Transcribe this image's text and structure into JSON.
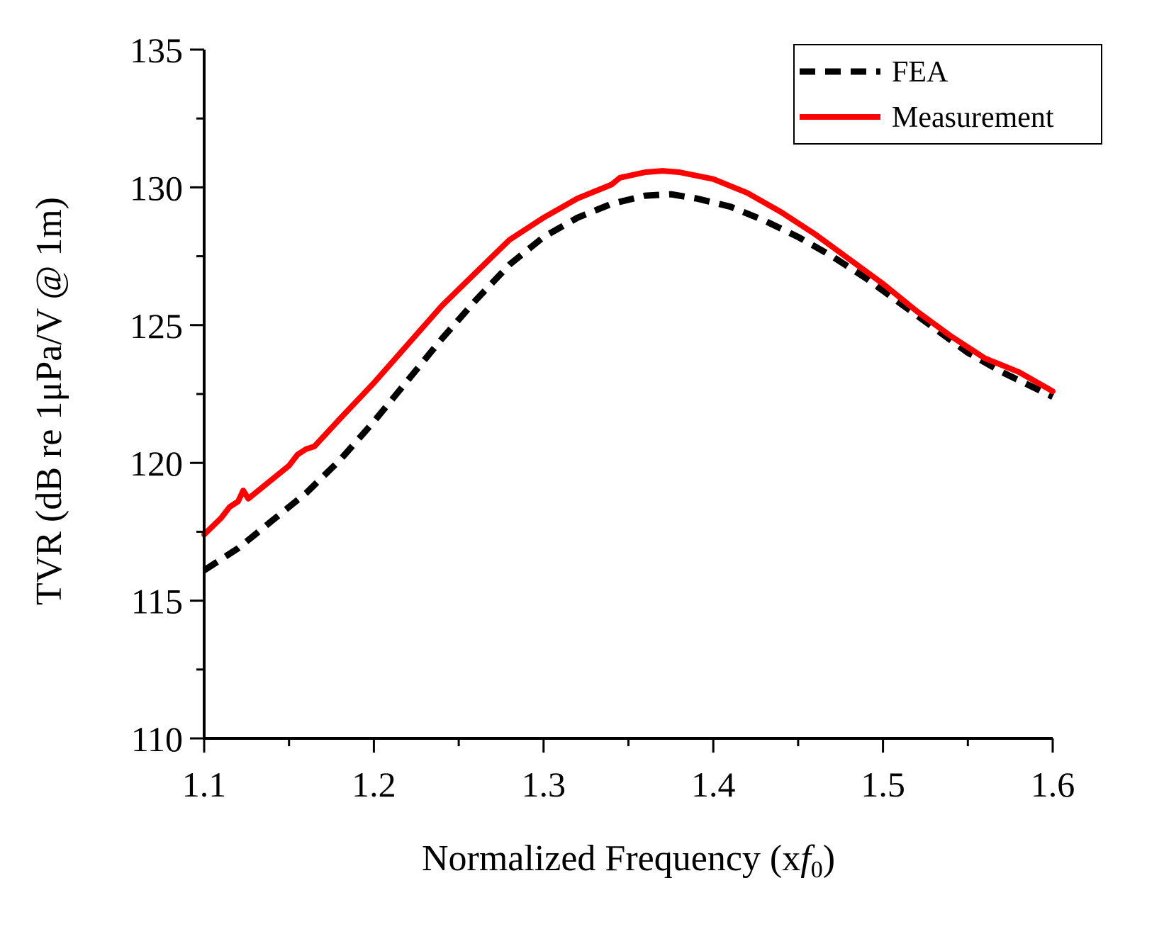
{
  "chart_data": {
    "type": "line",
    "title": "",
    "xlabel": "Normalized Frequency (x",
    "xlabel_var": "f",
    "xlabel_sub": "0",
    "xlabel_close": ")",
    "ylabel": "TVR (dB re 1μPa/V @ 1m)",
    "xlim": [
      1.1,
      1.6
    ],
    "ylim": [
      110,
      135
    ],
    "x_ticks": [
      1.1,
      1.2,
      1.3,
      1.4,
      1.5,
      1.6
    ],
    "x_tick_labels": [
      "1.1",
      "1.2",
      "1.3",
      "1.4",
      "1.5",
      "1.6"
    ],
    "x_minor_ticks": [
      1.15,
      1.25,
      1.35,
      1.45,
      1.55
    ],
    "y_ticks": [
      110,
      115,
      120,
      125,
      130,
      135
    ],
    "y_tick_labels": [
      "110",
      "115",
      "120",
      "125",
      "130",
      "135"
    ],
    "y_minor_ticks": [
      112.5,
      117.5,
      122.5,
      127.5,
      132.5
    ],
    "grid": false,
    "legend_position": "top-right",
    "series": [
      {
        "name": "FEA",
        "style": "dashed",
        "color": "#000000",
        "x": [
          1.1,
          1.12,
          1.14,
          1.16,
          1.18,
          1.2,
          1.22,
          1.24,
          1.26,
          1.28,
          1.3,
          1.32,
          1.34,
          1.36,
          1.375,
          1.39,
          1.41,
          1.43,
          1.45,
          1.47,
          1.49,
          1.51,
          1.53,
          1.55,
          1.57,
          1.6
        ],
        "y": [
          116.1,
          116.9,
          117.9,
          118.9,
          120.1,
          121.5,
          123.0,
          124.5,
          125.9,
          127.2,
          128.2,
          128.9,
          129.4,
          129.7,
          129.75,
          129.6,
          129.3,
          128.8,
          128.2,
          127.5,
          126.7,
          125.8,
          124.9,
          124.0,
          123.3,
          122.4
        ]
      },
      {
        "name": "Measurement",
        "style": "solid",
        "color": "#ff0000",
        "x": [
          1.1,
          1.105,
          1.11,
          1.115,
          1.12,
          1.123,
          1.126,
          1.13,
          1.14,
          1.15,
          1.155,
          1.16,
          1.165,
          1.18,
          1.2,
          1.22,
          1.24,
          1.26,
          1.28,
          1.3,
          1.32,
          1.34,
          1.345,
          1.36,
          1.37,
          1.38,
          1.4,
          1.42,
          1.44,
          1.46,
          1.48,
          1.5,
          1.52,
          1.54,
          1.56,
          1.58,
          1.6
        ],
        "y": [
          117.4,
          117.7,
          118.0,
          118.4,
          118.6,
          119.0,
          118.7,
          118.9,
          119.4,
          119.9,
          120.3,
          120.5,
          120.6,
          121.6,
          122.9,
          124.3,
          125.7,
          126.9,
          128.1,
          128.9,
          129.6,
          130.1,
          130.35,
          130.55,
          130.6,
          130.55,
          130.3,
          129.8,
          129.1,
          128.3,
          127.4,
          126.5,
          125.5,
          124.6,
          123.8,
          123.3,
          122.6
        ]
      }
    ]
  }
}
